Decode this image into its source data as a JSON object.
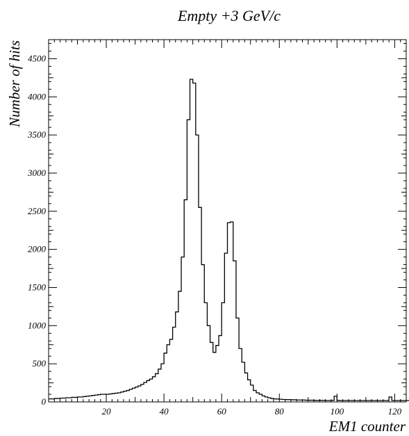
{
  "chart_data": {
    "type": "histogram",
    "title": "Empty +3 GeV/c",
    "xlabel": "EM1 counter",
    "ylabel": "Number of hits",
    "xlim": [
      0,
      124
    ],
    "ylim": [
      0,
      4750
    ],
    "xticks": [
      20,
      40,
      60,
      80,
      100,
      120
    ],
    "yticks": [
      500,
      1000,
      1500,
      2000,
      2500,
      3000,
      3500,
      4000,
      4500
    ],
    "bin_width": 1,
    "x_start": 0,
    "values": [
      40,
      40,
      45,
      45,
      50,
      50,
      55,
      55,
      60,
      60,
      65,
      65,
      70,
      75,
      80,
      85,
      90,
      95,
      100,
      100,
      100,
      105,
      110,
      115,
      120,
      130,
      140,
      150,
      165,
      180,
      195,
      210,
      230,
      255,
      280,
      300,
      330,
      370,
      430,
      500,
      640,
      750,
      820,
      980,
      1180,
      1450,
      1900,
      2650,
      3700,
      4230,
      4180,
      3500,
      2550,
      1800,
      1300,
      1000,
      780,
      650,
      740,
      870,
      1300,
      1950,
      2350,
      2360,
      1850,
      1100,
      700,
      520,
      380,
      290,
      220,
      150,
      120,
      100,
      80,
      65,
      55,
      45,
      40,
      38,
      35,
      32,
      30,
      30,
      28,
      28,
      25,
      25,
      25,
      22,
      22,
      22,
      20,
      20,
      20,
      20,
      18,
      18,
      20,
      75,
      20,
      18,
      18,
      18,
      18,
      18,
      18,
      18,
      18,
      18,
      18,
      18,
      18,
      18,
      18,
      18,
      18,
      18,
      65,
      18,
      18,
      18,
      18,
      18,
      18
    ],
    "grid": false,
    "legend": null,
    "color": "#000000"
  }
}
